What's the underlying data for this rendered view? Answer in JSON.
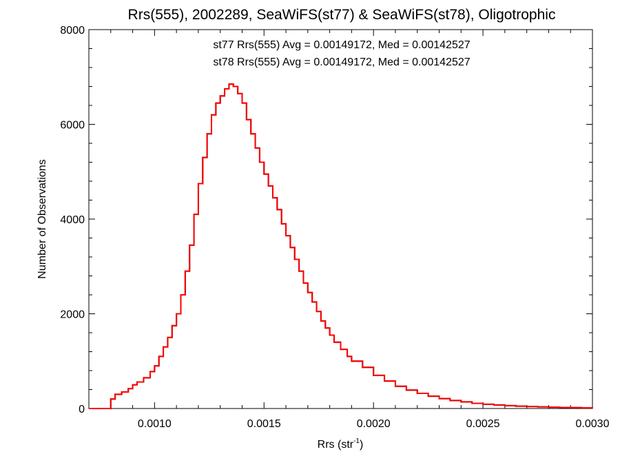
{
  "chart_data": {
    "type": "histogram-step",
    "title": "Rrs(555), 2002289, SeaWiFS(st77) & SeaWiFS(st78), Oligotrophic",
    "xlabel_main": "Rrs (str",
    "xlabel_sup": "-1",
    "xlabel_close": ")",
    "ylabel": "Number of Observations",
    "xlim": [
      0.0007,
      0.003
    ],
    "ylim": [
      0,
      8000
    ],
    "x_ticks": [
      0.001,
      0.0015,
      0.002,
      0.0025,
      0.003
    ],
    "x_tick_labels": [
      "0.0010",
      "0.0015",
      "0.0020",
      "0.0025",
      "0.0030"
    ],
    "y_ticks": [
      0,
      2000,
      4000,
      6000,
      8000
    ],
    "y_tick_labels": [
      "0",
      "2000",
      "4000",
      "6000",
      "8000"
    ],
    "annotations": [
      {
        "text": "st77 Rrs(555) Avg = 0.00149172, Med = 0.00142527",
        "color": "#000000"
      },
      {
        "text": "st78 Rrs(555) Avg = 0.00149172, Med = 0.00142527",
        "color": "#ff0000"
      }
    ],
    "series": [
      {
        "color": "#ff0000",
        "overlapping_color": "#000000",
        "x": [
          0.0007,
          0.00075,
          0.00078,
          0.0008,
          0.00082,
          0.00085,
          0.00088,
          0.0009,
          0.00092,
          0.00095,
          0.00098,
          0.001,
          0.00102,
          0.00104,
          0.00106,
          0.00108,
          0.0011,
          0.00112,
          0.00114,
          0.00116,
          0.00118,
          0.0012,
          0.00122,
          0.00124,
          0.00126,
          0.00128,
          0.0013,
          0.00132,
          0.00134,
          0.00136,
          0.00138,
          0.0014,
          0.00142,
          0.00144,
          0.00146,
          0.00148,
          0.0015,
          0.00152,
          0.00154,
          0.00156,
          0.00158,
          0.0016,
          0.00162,
          0.00164,
          0.00166,
          0.00168,
          0.0017,
          0.00172,
          0.00174,
          0.00176,
          0.00178,
          0.0018,
          0.00182,
          0.00185,
          0.00188,
          0.0019,
          0.00195,
          0.002,
          0.00205,
          0.0021,
          0.00215,
          0.0022,
          0.00225,
          0.0023,
          0.00235,
          0.0024,
          0.00245,
          0.0025,
          0.00255,
          0.0026,
          0.00265,
          0.0027,
          0.00275,
          0.0028,
          0.00285,
          0.0029,
          0.00295,
          0.003
        ],
        "y": [
          0,
          0,
          0,
          200,
          300,
          350,
          420,
          500,
          560,
          650,
          780,
          900,
          1100,
          1300,
          1500,
          1750,
          2000,
          2400,
          2900,
          3450,
          4100,
          4750,
          5300,
          5800,
          6200,
          6450,
          6600,
          6750,
          6850,
          6800,
          6650,
          6450,
          6100,
          5800,
          5500,
          5200,
          4950,
          4700,
          4450,
          4200,
          3900,
          3650,
          3400,
          3150,
          2900,
          2650,
          2450,
          2250,
          2050,
          1850,
          1700,
          1550,
          1400,
          1250,
          1100,
          1000,
          870,
          700,
          580,
          470,
          390,
          320,
          260,
          210,
          170,
          140,
          110,
          90,
          75,
          60,
          50,
          42,
          35,
          28,
          22,
          18,
          15,
          12
        ]
      }
    ]
  }
}
